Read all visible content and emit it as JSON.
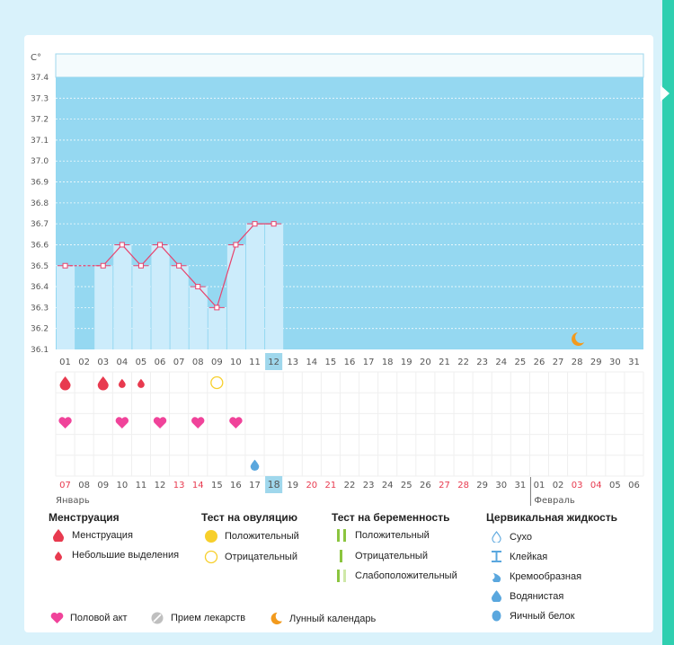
{
  "chart_data": {
    "type": "bar",
    "title": "",
    "ylabel": "C°",
    "xlabel": "",
    "ylim": [
      36.1,
      37.4
    ],
    "yticks": [
      "37.4",
      "37.3",
      "37.2",
      "37.1",
      "37.0",
      "36.9",
      "36.8",
      "36.7",
      "36.6",
      "36.5",
      "36.4",
      "36.3",
      "36.2",
      "36.1"
    ],
    "categories": [
      "01",
      "02",
      "03",
      "04",
      "05",
      "06",
      "07",
      "08",
      "09",
      "10",
      "11",
      "12",
      "13",
      "14",
      "15",
      "16",
      "17",
      "18",
      "19",
      "20",
      "21",
      "22",
      "23",
      "24",
      "25",
      "26",
      "27",
      "28",
      "29",
      "30",
      "31"
    ],
    "temperatures": [
      36.5,
      null,
      36.5,
      36.6,
      36.5,
      36.6,
      36.5,
      36.4,
      36.3,
      36.6,
      36.7,
      36.7,
      null,
      null,
      null,
      null,
      null,
      null,
      null,
      null,
      null,
      null,
      null,
      null,
      null,
      null,
      null,
      null,
      null,
      null,
      null
    ],
    "current_day_index": 11,
    "moon_day_index": 27,
    "menstruation_days": [
      0,
      2
    ],
    "light_discharge_days": [
      3,
      4
    ],
    "negative_ovulation_days": [
      8
    ],
    "intercourse_days": [
      0,
      3,
      5,
      7,
      9
    ],
    "watery_fluid_days": [
      10
    ],
    "dates_row": [
      "07",
      "08",
      "09",
      "10",
      "11",
      "12",
      "13",
      "14",
      "15",
      "16",
      "17",
      "18",
      "19",
      "20",
      "21",
      "22",
      "23",
      "24",
      "25",
      "26",
      "27",
      "28",
      "29",
      "30",
      "31",
      "01",
      "02",
      "03",
      "04",
      "05",
      "06"
    ],
    "dates_red": [
      0,
      6,
      7,
      13,
      14,
      20,
      21,
      27,
      28
    ],
    "dates_current_index": 11,
    "month_january": "Январь",
    "month_february": "Февраль"
  },
  "legend": {
    "menstruation": {
      "title": "Менструация",
      "items": [
        "Менструация",
        "Небольшие выделения"
      ]
    },
    "ovulation": {
      "title": "Тест на овуляцию",
      "items": [
        "Положительный",
        "Отрицательный"
      ]
    },
    "pregnancy": {
      "title": "Тест на беременность",
      "items": [
        "Положительный",
        "Отрицательный",
        "Слабоположительный"
      ]
    },
    "cervical": {
      "title": "Цервикальная жидкость",
      "items": [
        "Сухо",
        "Клейкая",
        "Кремообразная",
        "Водянистая",
        "Яичный белок"
      ]
    },
    "bottom": [
      "Половой акт",
      "Прием лекарств",
      "Лунный календарь"
    ]
  },
  "colors": {
    "chart_bg": "#95d8f1",
    "bar_fill": "#ccecfb",
    "line": "#e8436d",
    "red": "#e83a4f",
    "pink": "#f0439a",
    "yellow": "#f7cf2b",
    "orange": "#f29a1d",
    "green": "#8bc53f",
    "blue": "#5aa7de",
    "current": "#9fd7ec"
  }
}
